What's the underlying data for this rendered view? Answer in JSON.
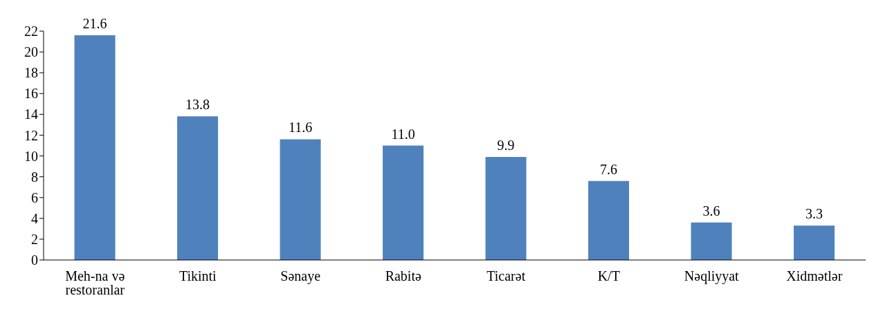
{
  "chart_data": {
    "type": "bar",
    "categories": [
      "Meh-na və restoranlar",
      "Tikinti",
      "Sənaye",
      "Rabitə",
      "Ticarət",
      "K/T",
      "Nəqliyyat",
      "Xidmətlər"
    ],
    "values": [
      21.6,
      13.8,
      11.6,
      11.0,
      9.9,
      7.6,
      3.6,
      3.3
    ],
    "value_labels": [
      "21.6",
      "13.8",
      "11.6",
      "11.0",
      "9.9",
      "7.6",
      "3.6",
      "3.3"
    ],
    "color": "#4f81bd",
    "ylim": [
      0,
      22
    ],
    "yticks": [
      0,
      2,
      4,
      6,
      8,
      10,
      12,
      14,
      16,
      18,
      20,
      22
    ],
    "grid": false,
    "legend": false
  }
}
